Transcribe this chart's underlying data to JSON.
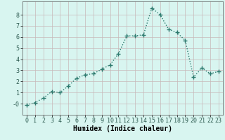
{
  "x": [
    0,
    1,
    2,
    3,
    4,
    5,
    6,
    7,
    8,
    9,
    10,
    11,
    12,
    13,
    14,
    15,
    16,
    17,
    18,
    19,
    20,
    21,
    22,
    23
  ],
  "y": [
    -0.1,
    0.1,
    0.5,
    1.1,
    1.0,
    1.6,
    2.3,
    2.6,
    2.7,
    3.1,
    3.5,
    4.5,
    6.1,
    6.1,
    6.2,
    8.6,
    8.0,
    6.7,
    6.4,
    5.7,
    2.4,
    3.2,
    2.7,
    2.9
  ],
  "line_color": "#2d7a6e",
  "marker": "+",
  "marker_size": 4,
  "bg_color": "#d8f5f0",
  "grid_color": "#c8b8b8",
  "xlabel": "Humidex (Indice chaleur)",
  "xlim": [
    -0.5,
    23.5
  ],
  "ylim": [
    -1.0,
    9.2
  ],
  "yticks": [
    0,
    1,
    2,
    3,
    4,
    5,
    6,
    7,
    8
  ],
  "ytick_labels": [
    "-0",
    "1",
    "2",
    "3",
    "4",
    "5",
    "6",
    "7",
    "8"
  ],
  "xticks": [
    0,
    1,
    2,
    3,
    4,
    5,
    6,
    7,
    8,
    9,
    10,
    11,
    12,
    13,
    14,
    15,
    16,
    17,
    18,
    19,
    20,
    21,
    22,
    23
  ],
  "xlabel_fontsize": 7,
  "tick_fontsize": 6,
  "line_width": 1.0
}
